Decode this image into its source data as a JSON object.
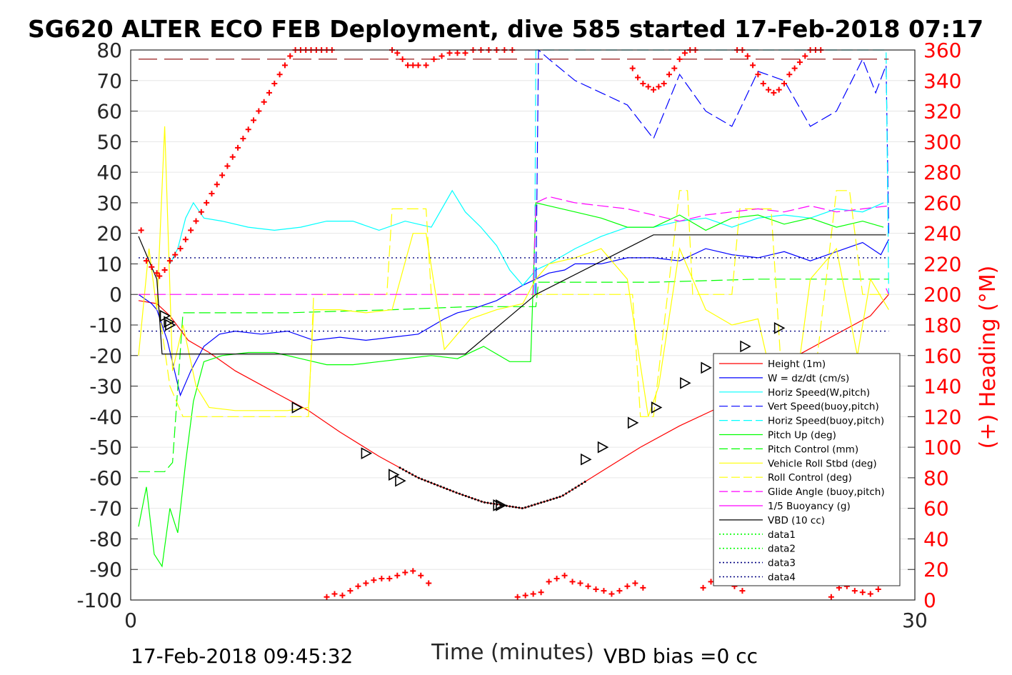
{
  "chart_data": {
    "type": "line",
    "title": "SG620 ALTER ECO FEB Deployment, dive 585 started 17-Feb-2018 07:17",
    "xlabel": "Time (minutes)",
    "ylabel": "",
    "ylabel_right": "(+) Heading (°M)",
    "xlim": [
      0,
      30
    ],
    "ylim": [
      -100,
      80
    ],
    "ylim_right": [
      0,
      360
    ],
    "xticks": [
      "0",
      "30"
    ],
    "yticks": [
      80,
      70,
      60,
      50,
      40,
      30,
      20,
      10,
      0,
      -10,
      -20,
      -30,
      -40,
      -50,
      -60,
      -70,
      -80,
      -90,
      -100
    ],
    "yticks_right": [
      360,
      340,
      320,
      300,
      280,
      260,
      240,
      220,
      200,
      180,
      160,
      140,
      120,
      100,
      80,
      60,
      40,
      20,
      0
    ],
    "grid": true,
    "legend_position": "lower-right",
    "footer_left": "17-Feb-2018 09:45:32",
    "footer_right": "VBD bias =0 cc",
    "colors": {
      "height": "#ff0000",
      "w": "#0000ff",
      "horiz_speed": "#00ffff",
      "pitch_up": "#00ff00",
      "vehicle_roll": "#ffff00",
      "glide_angle": "#ff00ff",
      "vbd": "#000000",
      "data3": "#000080",
      "heading": "#ff0000"
    },
    "series": [
      {
        "name": "Height (1m)",
        "style": "solid",
        "color": "#ff0000",
        "x": [
          0.3,
          1.0,
          1.5,
          2.2,
          3.0,
          4.0,
          5.5,
          6.8,
          8.0,
          9.5,
          11.0,
          12.5,
          13.5,
          15.0,
          16.5,
          18.0,
          19.5,
          21.0,
          22.5,
          24.0,
          25.5,
          27.0,
          28.3,
          29.0
        ],
        "y": [
          -2,
          -3,
          -7,
          -15,
          -19,
          -25,
          -32,
          -38,
          -45,
          -53,
          -60,
          -65,
          -68,
          -70,
          -66,
          -58,
          -50,
          -43,
          -37,
          -28,
          -20,
          -13,
          -7,
          0
        ]
      },
      {
        "name": "W = dz/dt (cm/s)",
        "style": "solid",
        "color": "#0000ff",
        "x": [
          0.3,
          0.8,
          1.0,
          1.4,
          1.9,
          2.3,
          2.8,
          3.4,
          4.0,
          5.0,
          6.0,
          7.0,
          8.0,
          9.0,
          10.0,
          11.0,
          12.0,
          12.5,
          13.0,
          14.0,
          15.0,
          15.5,
          16.0,
          16.6,
          17.0,
          18.0,
          19.0,
          20.0,
          21.0,
          22.0,
          23.0,
          24.0,
          25.0,
          26.0,
          27.0,
          28.0,
          28.7,
          29.0
        ],
        "y": [
          0,
          -3,
          -5,
          -15,
          -33,
          -25,
          -17,
          -13,
          -12,
          -13,
          -12,
          -15,
          -14,
          -15,
          -14,
          -13,
          -8,
          -6,
          -5,
          -2,
          3,
          5,
          7,
          8,
          10,
          10,
          12,
          12,
          11,
          15,
          13,
          12,
          14,
          11,
          14,
          17,
          13,
          18
        ]
      },
      {
        "name": "Horiz Speed(W,pitch)",
        "style": "solid",
        "color": "#00ffff",
        "x": [
          1.5,
          1.8,
          2.1,
          2.4,
          2.8,
          3.5,
          4.5,
          5.5,
          6.5,
          7.5,
          8.5,
          9.5,
          10.5,
          11.5,
          12.3,
          12.8,
          13.4,
          14.0,
          14.5,
          15.0,
          15.5,
          16.0,
          17.0,
          18.0,
          19.0,
          20.0,
          21.0,
          22.0,
          23.0,
          24.0,
          25.0,
          26.0,
          27.0,
          28.0,
          28.8
        ],
        "y": [
          10,
          15,
          25,
          30,
          25,
          24,
          22,
          21,
          22,
          24,
          24,
          21,
          24,
          22,
          34,
          27,
          22,
          16,
          8,
          3,
          8,
          10,
          15,
          19,
          22,
          22,
          24,
          25,
          22,
          25,
          26,
          25,
          28,
          27,
          30
        ]
      },
      {
        "name": "Vert Speed(buoy,pitch)",
        "style": "dash",
        "color": "#0000ff",
        "x": [
          15.5,
          15.6,
          16.0,
          17.0,
          18.0,
          19.0,
          20.0,
          21.0,
          22.0,
          23.0,
          24.0,
          25.0,
          26.0,
          27.0,
          28.0,
          28.5,
          28.9,
          29.0
        ],
        "y": [
          0,
          80,
          77,
          70,
          66,
          62,
          51,
          72,
          60,
          55,
          73,
          70,
          55,
          60,
          77,
          66,
          75,
          20
        ]
      },
      {
        "name": "Horiz Speed(buoy,pitch)",
        "style": "dash",
        "color": "#00ffff",
        "x": [
          15.45,
          15.5,
          15.6,
          28.9,
          29.0
        ],
        "y": [
          0,
          80,
          80,
          80,
          0
        ]
      },
      {
        "name": "Pitch Up (deg)",
        "style": "solid",
        "color": "#00ff00",
        "x": [
          0.3,
          0.6,
          0.9,
          1.2,
          1.5,
          1.8,
          2.1,
          2.4,
          2.8,
          3.5,
          4.5,
          5.5,
          6.5,
          7.5,
          8.5,
          9.5,
          10.5,
          11.5,
          12.5,
          13.5,
          14.5,
          15.3,
          15.5,
          16.0,
          17.0,
          18.0,
          19.0,
          20.0,
          21.0,
          22.0,
          23.0,
          24.0,
          25.0,
          26.0,
          27.0,
          28.0,
          28.8
        ],
        "y": [
          -76,
          -63,
          -85,
          -89,
          -70,
          -78,
          -55,
          -35,
          -22,
          -20,
          -19,
          -19,
          -21,
          -23,
          -23,
          -22,
          -21,
          -20,
          -21,
          -17,
          -22,
          -22,
          30,
          29,
          27,
          25,
          22,
          22,
          26,
          21,
          25,
          26,
          23,
          25,
          22,
          24,
          22
        ]
      },
      {
        "name": "Pitch Control (mm)",
        "style": "dash",
        "color": "#00ff00",
        "x": [
          0.3,
          1.3,
          1.6,
          2.0,
          3.0,
          6.0,
          10.0,
          13.0,
          15.5,
          15.6,
          20.0,
          24.0,
          29.0
        ],
        "y": [
          -58,
          -58,
          -55,
          -6,
          -6,
          -6,
          -5,
          -4,
          -4,
          4,
          4,
          5,
          5
        ]
      },
      {
        "name": "Vehicle Roll Stbd (deg)",
        "style": "solid",
        "color": "#ffff00",
        "x": [
          0.3,
          0.7,
          1.0,
          1.3,
          1.6,
          2.0,
          2.5,
          3.0,
          4.0,
          5.0,
          6.0,
          6.8,
          7.0,
          8.0,
          9.0,
          10.0,
          10.8,
          11.3,
          12.0,
          13.0,
          14.0,
          15.0,
          15.5,
          16.0,
          17.0,
          18.0,
          19.0,
          19.8,
          20.2,
          21.0,
          22.0,
          23.0,
          24.0,
          24.8,
          25.3,
          26.0,
          27.0,
          27.8,
          28.3,
          29.0
        ],
        "y": [
          -20,
          15,
          -5,
          55,
          -25,
          -10,
          -30,
          -37,
          -38,
          -38,
          -38,
          -37,
          -5,
          -5,
          -6,
          -5,
          20,
          20,
          -18,
          -8,
          -5,
          -3,
          5,
          10,
          12,
          15,
          5,
          -40,
          -30,
          15,
          -5,
          -10,
          -8,
          -38,
          -40,
          5,
          15,
          -20,
          5,
          -5
        ]
      },
      {
        "name": "Roll Control (deg)",
        "style": "dash",
        "color": "#ffff00",
        "x": [
          0.3,
          1.0,
          1.5,
          2.0,
          3.0,
          6.0,
          6.8,
          7.0,
          9.8,
          10.0,
          11.0,
          11.3,
          11.5,
          15.0,
          15.5,
          19.2,
          19.5,
          20.0,
          21.0,
          21.3,
          21.5,
          23.0,
          23.3,
          24.5,
          25.0,
          26.0,
          27.0,
          27.5,
          28.0,
          29.0
        ],
        "y": [
          0,
          0,
          -30,
          -40,
          -40,
          -40,
          -40,
          0,
          0,
          28,
          28,
          28,
          0,
          0,
          0,
          0,
          -40,
          -40,
          34,
          34,
          0,
          0,
          28,
          28,
          -40,
          -40,
          34,
          34,
          0,
          0
        ]
      },
      {
        "name": "Glide Angle (buoy,pitch)",
        "style": "dash",
        "color": "#ff00ff",
        "x": [
          0.3,
          5.0,
          10.0,
          15.4,
          15.5,
          16.0,
          17.0,
          18.0,
          19.0,
          20.0,
          21.0,
          22.0,
          23.0,
          24.0,
          25.0,
          26.0,
          27.0,
          28.0,
          29.0
        ],
        "y": [
          0,
          0,
          0,
          0,
          30,
          32,
          30,
          29,
          28,
          26,
          24,
          26,
          27,
          28,
          27,
          29,
          27,
          28,
          29
        ]
      },
      {
        "name": "1/5 Buoyancy (g)",
        "style": "solid",
        "color": "#ff00ff",
        "x": [
          28.9,
          29.0
        ],
        "y": [
          2,
          0
        ]
      },
      {
        "name": "VBD (10 cc)",
        "style": "solid",
        "color": "#000000",
        "x": [
          0.3,
          1.0,
          1.2,
          5.0,
          10.0,
          12.8,
          15.5,
          20.0,
          28.9
        ],
        "y": [
          19,
          5,
          -19.5,
          -19.5,
          -19.5,
          -19.5,
          0,
          19.5,
          19.5
        ]
      },
      {
        "name": "data1",
        "style": "dot",
        "color": "#00ff00",
        "x": [],
        "y": []
      },
      {
        "name": "data2",
        "style": "dot",
        "color": "#00ff00",
        "x": [],
        "y": []
      },
      {
        "name": "data3",
        "style": "dot",
        "color": "#000080",
        "x": [
          0.3,
          29.0
        ],
        "y": [
          12,
          12
        ]
      },
      {
        "name": "data4",
        "style": "dot",
        "color": "#000080",
        "x": [
          0.3,
          29.0
        ],
        "y": [
          -12,
          -12
        ]
      }
    ],
    "right_axis_series": [
      {
        "style": "longdash",
        "color": "#8b0000",
        "x": [
          0.3,
          29.0
        ],
        "y": [
          354,
          354
        ]
      },
      {
        "style": "plus",
        "color": "#ff0000",
        "x": [
          0.4,
          0.6,
          0.8,
          1.0,
          1.1,
          1.3,
          1.5,
          1.7,
          1.9,
          2.1,
          2.3,
          2.5,
          2.7,
          2.9,
          3.1,
          3.3,
          3.5,
          3.7,
          3.9,
          4.1,
          4.3,
          4.5,
          4.7,
          4.9,
          5.1,
          5.3,
          5.5,
          5.7,
          5.9,
          6.1,
          6.3,
          6.5,
          6.7,
          6.9,
          7.1,
          7.3,
          7.5,
          7.7,
          10.0,
          10.2,
          10.4,
          10.6,
          10.8,
          11.0,
          11.3,
          11.6,
          11.9,
          12.2,
          12.5,
          12.8,
          13.1,
          13.4,
          13.7,
          14.0,
          14.3,
          14.6,
          19.2,
          19.4,
          19.6,
          19.8,
          20.0,
          20.2,
          20.4,
          20.6,
          20.8,
          21.0,
          21.2,
          21.4,
          21.6,
          23.2,
          23.4,
          23.6,
          23.8,
          24.0,
          24.2,
          24.4,
          24.6,
          24.8,
          25.0,
          25.2,
          25.4,
          25.6,
          25.8,
          26.0,
          26.2,
          26.4
        ],
        "y": [
          242,
          222,
          218,
          214,
          212,
          216,
          222,
          226,
          230,
          236,
          242,
          248,
          254,
          260,
          266,
          272,
          278,
          284,
          290,
          296,
          302,
          308,
          314,
          320,
          326,
          332,
          338,
          344,
          350,
          356,
          360,
          362,
          366,
          370,
          374,
          378,
          382,
          386,
          362,
          358,
          354,
          350,
          350,
          350,
          350,
          354,
          356,
          358,
          358,
          358,
          360,
          362,
          364,
          366,
          368,
          370,
          348,
          342,
          338,
          336,
          334,
          336,
          338,
          344,
          348,
          354,
          358,
          362,
          366,
          366,
          362,
          356,
          350,
          344,
          338,
          334,
          332,
          334,
          338,
          344,
          348,
          352,
          356,
          360,
          364,
          368
        ]
      },
      {
        "style": "plus",
        "color": "#ff0000",
        "x": [
          7.5,
          7.8,
          8.1,
          8.4,
          8.7,
          9.0,
          9.3,
          9.6,
          9.9,
          10.2,
          10.5,
          10.8,
          11.1,
          11.4,
          14.8,
          15.1,
          15.4,
          15.7,
          16.0,
          16.3,
          16.6,
          16.9,
          17.2,
          17.5,
          17.8,
          18.1,
          18.4,
          18.7,
          19.0,
          19.3,
          19.6,
          21.9,
          22.2,
          22.5,
          22.8,
          23.1,
          23.4,
          26.8,
          27.1,
          27.4,
          27.7,
          28.0,
          28.3,
          28.6,
          28.9
        ],
        "y": [
          2,
          4,
          3,
          6,
          9,
          11,
          13,
          14,
          14,
          16,
          18,
          19,
          16,
          11,
          2,
          3,
          4,
          5,
          12,
          14,
          16,
          12,
          11,
          9,
          7,
          6,
          4,
          6,
          9,
          11,
          8,
          8,
          12,
          14,
          13,
          9,
          6,
          2,
          8,
          9,
          6,
          5,
          4,
          7,
          20
        ]
      }
    ]
  }
}
